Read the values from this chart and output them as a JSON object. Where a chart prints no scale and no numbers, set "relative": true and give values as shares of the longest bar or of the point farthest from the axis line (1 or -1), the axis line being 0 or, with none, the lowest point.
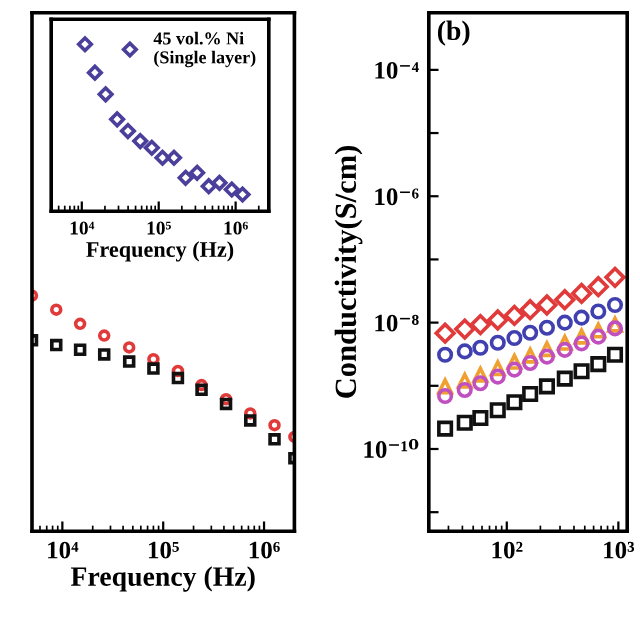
{
  "chart_data": [
    {
      "type": "scatter",
      "relative": true,
      "log": "x",
      "xlabel": "Frequency (Hz)",
      "xlim": [
        5000,
        2000000
      ],
      "xticks": [
        {
          "value": 10000,
          "label": "10⁴"
        },
        {
          "value": 100000,
          "label": "10⁵"
        },
        {
          "value": 1000000,
          "label": "10⁶"
        }
      ],
      "tick_labels": "x",
      "marker": "circle",
      "series": [
        {
          "color": "#e03a3a",
          "marker": "circle",
          "x": [
            5000,
            8700,
            15000,
            26000,
            46000,
            80000,
            140000,
            240000,
            420000,
            730000,
            1270000,
            2000000
          ],
          "values": [
            1.0,
            0.94,
            0.88,
            0.83,
            0.78,
            0.73,
            0.68,
            0.62,
            0.56,
            0.5,
            0.45,
            0.4
          ]
        },
        {
          "color": "#111111",
          "marker": "square",
          "x": [
            5000,
            8700,
            15000,
            26000,
            46000,
            80000,
            140000,
            240000,
            420000,
            730000,
            1270000,
            2000000
          ],
          "values": [
            0.81,
            0.79,
            0.77,
            0.75,
            0.72,
            0.69,
            0.65,
            0.6,
            0.54,
            0.47,
            0.39,
            0.31
          ]
        }
      ]
    },
    {
      "type": "scatter",
      "relative": true,
      "log": "x",
      "xlabel": "Frequency (Hz)",
      "xlim": [
        4000,
        2700000
      ],
      "xticks": [
        {
          "value": 10000,
          "label": "10⁴"
        },
        {
          "value": 100000,
          "label": "10⁵"
        },
        {
          "value": 1000000,
          "label": "10⁶"
        }
      ],
      "tick_labels": "x",
      "marker": "diamond",
      "legend": "top right",
      "series": [
        {
          "name": "45 vol.% Ni\n(Single layer)",
          "color": "#4a3f9a",
          "x": [
            11000,
            14800,
            20400,
            28800,
            39800,
            57500,
            81300,
            112000,
            158000,
            224000,
            316000,
            447000,
            617000,
            891000,
            1230000
          ],
          "values": [
            1.0,
            0.83,
            0.7,
            0.55,
            0.48,
            0.42,
            0.38,
            0.32,
            0.32,
            0.2,
            0.23,
            0.15,
            0.17,
            0.13,
            0.1
          ]
        }
      ]
    },
    {
      "type": "scatter",
      "log": "xy",
      "ylabel": "Conductivity(S/cm)",
      "annotations": [
        "(b)"
      ],
      "xlim": [
        20,
        1200
      ],
      "ylim": [
        5e-12,
        0.0008
      ],
      "xticks": [
        {
          "value": 100,
          "label": "10²"
        },
        {
          "value": 1000,
          "label": "10³"
        }
      ],
      "yticks": [
        {
          "value": 1e-11,
          "label": null
        },
        {
          "value": 1e-10,
          "label": "10⁻¹⁰"
        },
        {
          "value": 1e-09,
          "label": null
        },
        {
          "value": 1e-08,
          "label": "10⁻⁸"
        },
        {
          "value": 1e-07,
          "label": null
        },
        {
          "value": 1e-06,
          "label": "10⁻⁶"
        },
        {
          "value": 1e-05,
          "label": null
        },
        {
          "value": 0.0001,
          "label": "10⁻⁴"
        }
      ],
      "series": [
        {
          "color": "#e03a3a",
          "marker": "diamond",
          "x": [
            28,
            42,
            58,
            83,
            117,
            162,
            229,
            331,
            468,
            661,
            933
          ],
          "values": [
            6.8e-09,
            7.9e-09,
            9.3e-09,
            1.1e-08,
            1.3e-08,
            1.6e-08,
            1.9e-08,
            2.3e-08,
            2.9e-08,
            3.7e-08,
            5.2e-08
          ]
        },
        {
          "color": "#4040b0",
          "marker": "circle",
          "x": [
            28,
            42,
            58,
            83,
            117,
            162,
            229,
            331,
            468,
            661,
            933
          ],
          "values": [
            3.1e-09,
            3.5e-09,
            4e-09,
            4.8e-09,
            5.7e-09,
            6.9e-09,
            8.3e-09,
            1e-08,
            1.2e-08,
            1.5e-08,
            1.9e-08
          ]
        },
        {
          "color": "#f0a030",
          "marker": "triangle",
          "x": [
            28,
            42,
            58,
            83,
            117,
            162,
            229,
            331,
            468,
            661,
            933
          ],
          "values": [
            9.8e-10,
            1.2e-09,
            1.5e-09,
            1.9e-09,
            2.4e-09,
            3e-09,
            3.8e-09,
            4.8e-09,
            6e-09,
            7.5e-09,
            9.3e-09
          ]
        },
        {
          "color": "#c050c0",
          "marker": "circle",
          "x": [
            28,
            42,
            58,
            83,
            117,
            162,
            229,
            331,
            468,
            661,
            933
          ],
          "values": [
            6.9e-10,
            8.6e-10,
            1.1e-09,
            1.4e-09,
            1.8e-09,
            2.3e-09,
            2.9e-09,
            3.7e-09,
            4.7e-09,
            6e-09,
            8.1e-09
          ]
        },
        {
          "color": "#111111",
          "marker": "square",
          "x": [
            28,
            42,
            58,
            83,
            117,
            162,
            229,
            331,
            468,
            661,
            933
          ],
          "values": [
            2.1e-10,
            2.6e-10,
            3.1e-10,
            4.1e-10,
            5.5e-10,
            7.4e-10,
            9.8e-10,
            1.3e-09,
            1.7e-09,
            2.2e-09,
            3.1e-09
          ]
        }
      ]
    }
  ]
}
